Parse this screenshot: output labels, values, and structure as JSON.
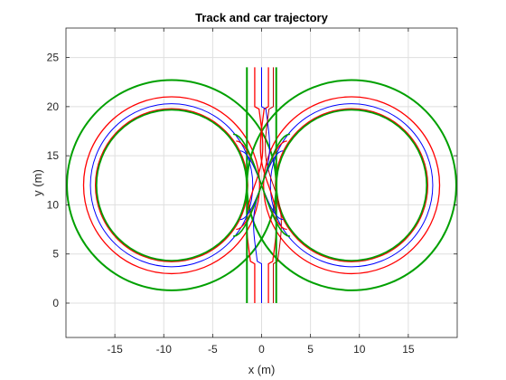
{
  "chart_data": {
    "type": "line",
    "title": "Track and car trajectory",
    "xlabel": "x (m)",
    "ylabel": "y (m)",
    "xlim": [
      -20,
      20
    ],
    "ylim": [
      -3.5,
      28
    ],
    "xticks": [
      -15,
      -10,
      -5,
      0,
      5,
      10,
      15
    ],
    "yticks": [
      0,
      5,
      10,
      15,
      20,
      25
    ],
    "grid": true,
    "legend": "none",
    "colors": {
      "outer_boundary": "#00a000",
      "lane_limit": "#ff0000",
      "centerline": "#0000ff",
      "trajectory": "#c00000",
      "inner_boundary": "#00a000"
    },
    "geometry": {
      "loop_centers": [
        [
          -9.2,
          12
        ],
        [
          9.2,
          12
        ]
      ],
      "outer_boundary_radius": 10.7,
      "outer_lane_radius": 9,
      "centerline_radius": 8.3,
      "inner_lane_radius": 7.7,
      "inner_boundary_radius": 7.7,
      "straight_y_range": [
        0,
        24
      ],
      "straight_x_positions": {
        "outer_boundary": [
          -1.5,
          1.5
        ],
        "lane_limit": [
          -0.7,
          0.7
        ],
        "centerline": [
          0
        ]
      }
    }
  }
}
